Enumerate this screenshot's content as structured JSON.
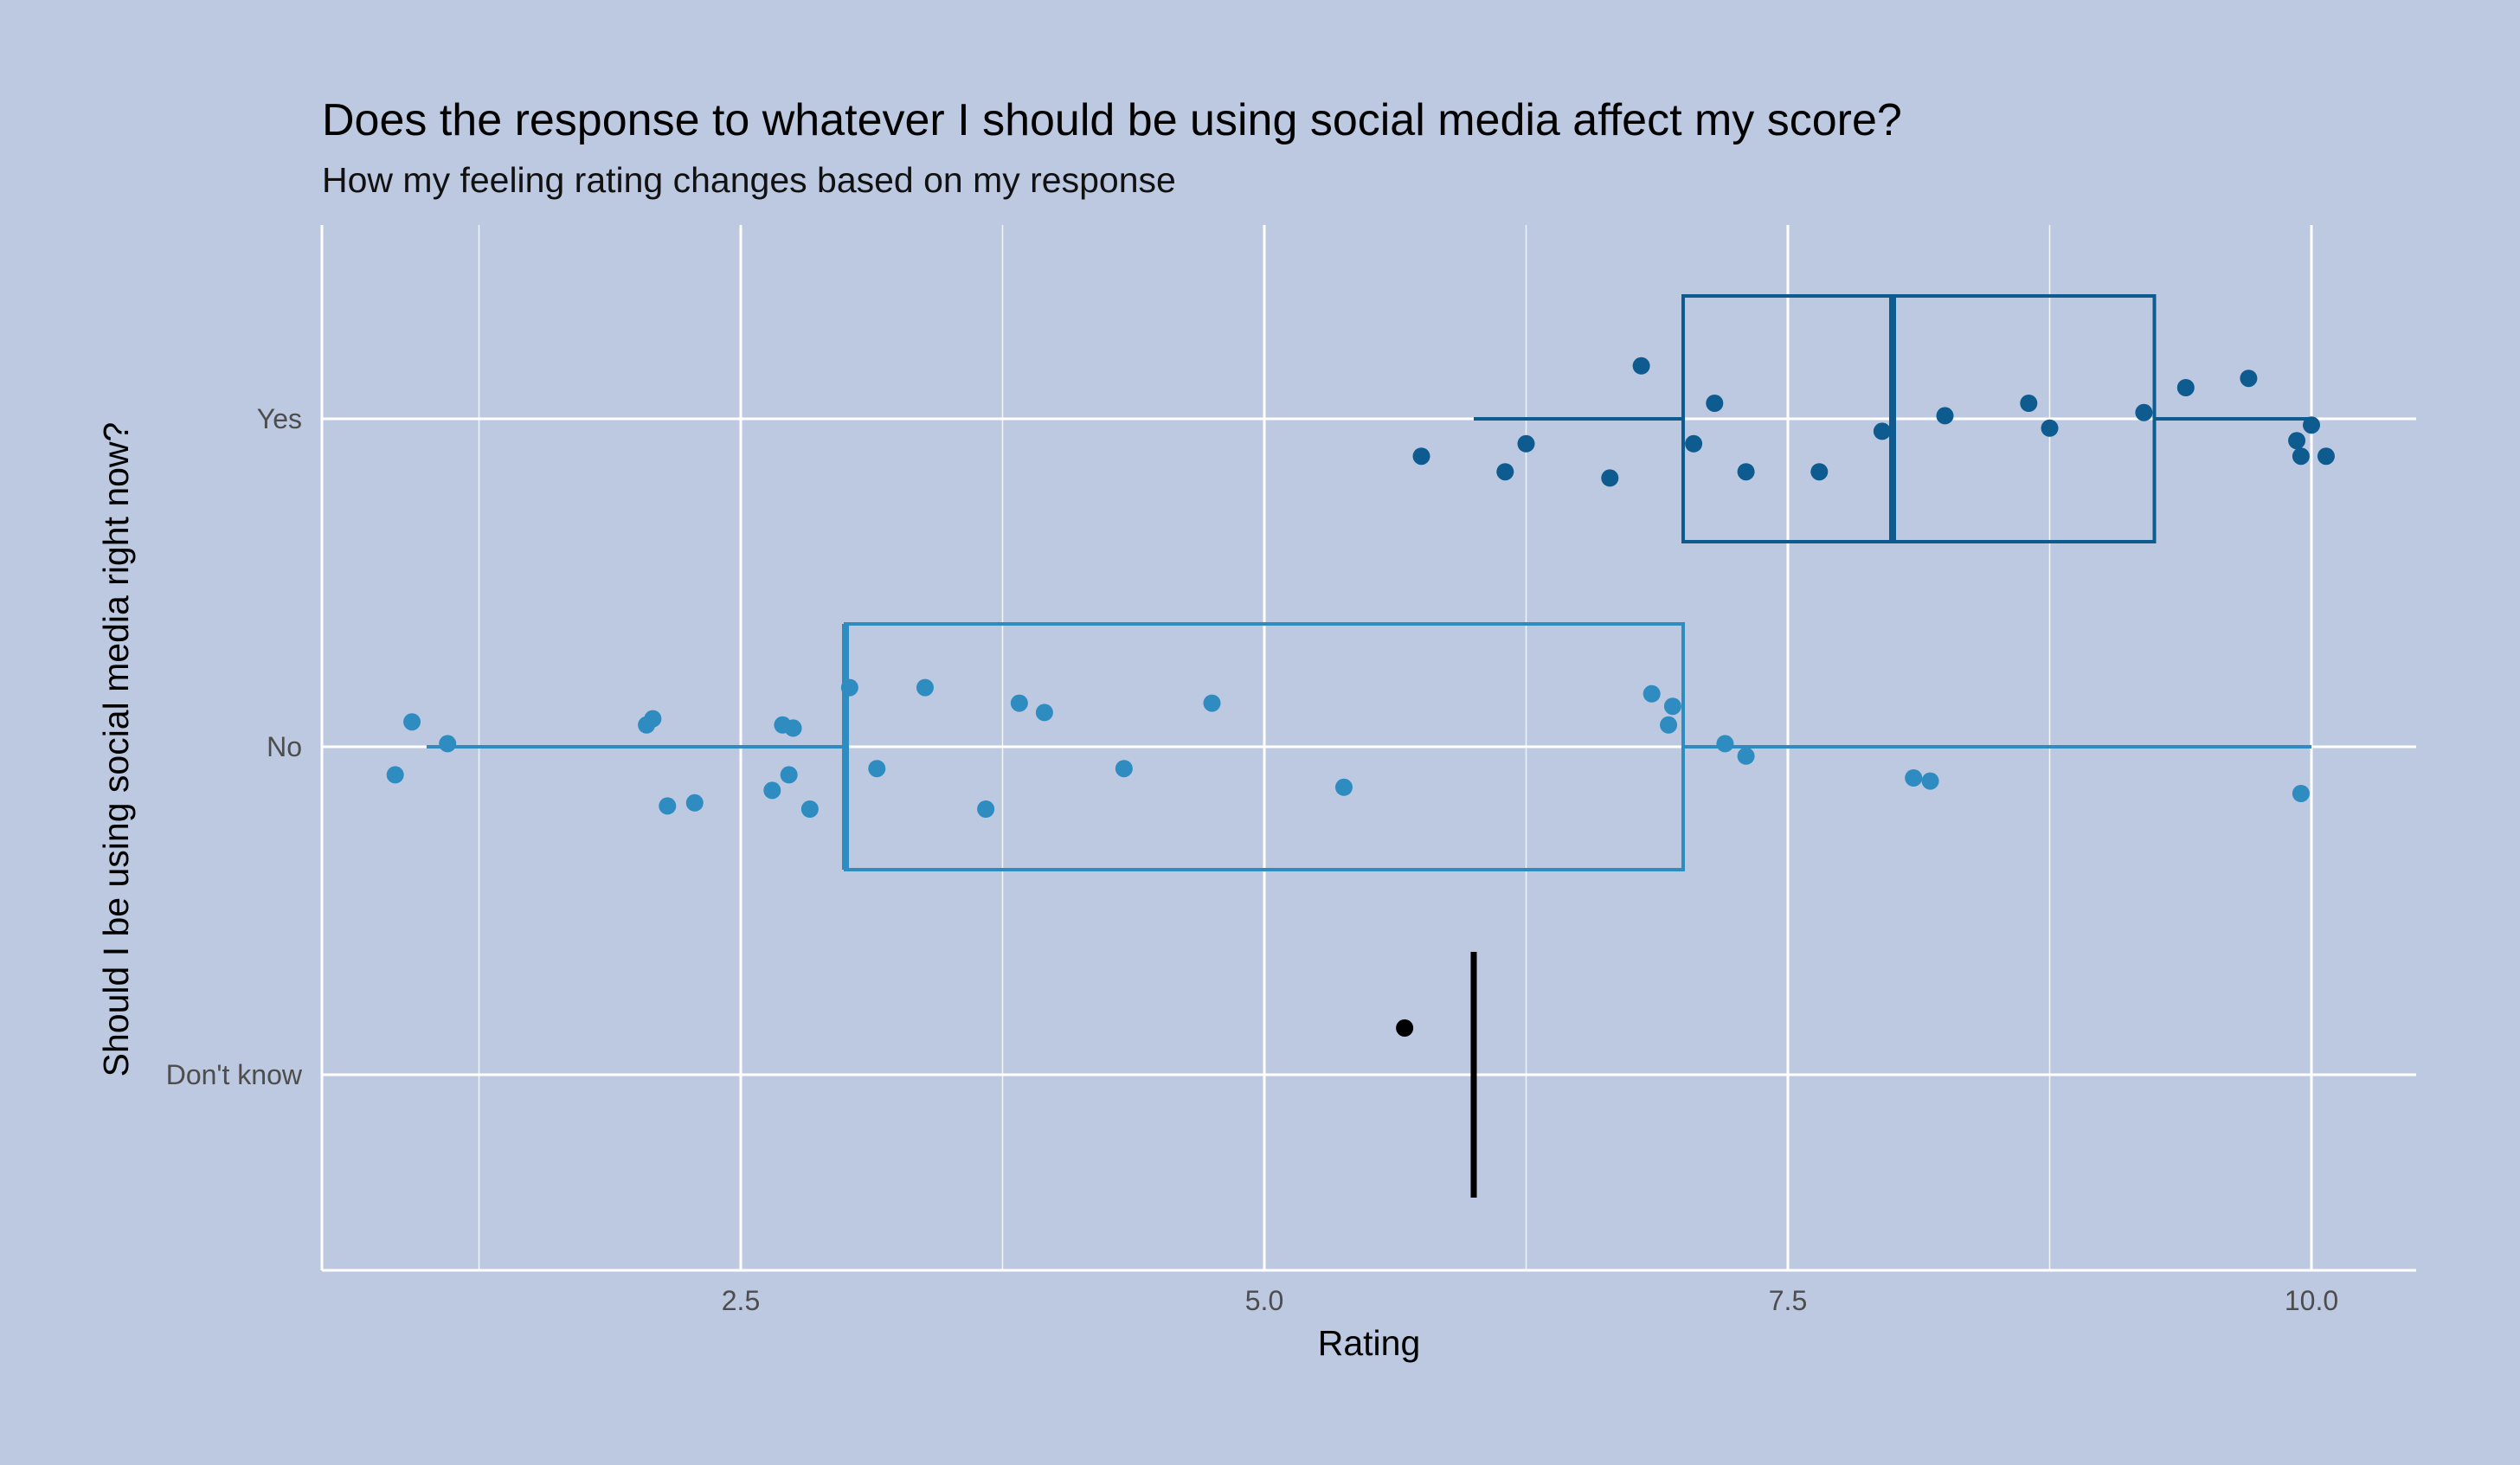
{
  "chart_data": {
    "type": "boxplot",
    "orientation": "horizontal",
    "title": "Does the response to whatever I should be using social media affect my score?",
    "subtitle": "How my feeling rating changes based on my response",
    "xlabel": "Rating",
    "ylabel": "Should I be using social media right now?",
    "xlim": [
      0.5,
      10.5
    ],
    "x_ticks": [
      2.5,
      5.0,
      7.5,
      10.0
    ],
    "x_tick_labels": [
      "2.5",
      "5.0",
      "7.5",
      "10.0"
    ],
    "categories": [
      "Yes",
      "No",
      "Don't know"
    ],
    "grid": true,
    "background": "#bcc9e1",
    "grid_color": "#ffffff",
    "series": [
      {
        "category": "Yes",
        "color": "#0d5b8f",
        "box": {
          "whisker_low": 6.0,
          "q1": 7.0,
          "median": 8.0,
          "q3": 9.25,
          "whisker_high": 10.0
        },
        "points": [
          5.75,
          6.15,
          6.25,
          6.65,
          6.8,
          7.05,
          7.15,
          7.3,
          7.65,
          7.95,
          8.25,
          8.65,
          8.75,
          9.2,
          9.4,
          9.7,
          9.93,
          9.95,
          10.0,
          10.07
        ],
        "jitter": [
          -0.12,
          -0.17,
          -0.08,
          -0.19,
          0.17,
          -0.08,
          0.05,
          -0.17,
          -0.17,
          -0.04,
          0.01,
          0.05,
          -0.03,
          0.02,
          0.1,
          0.13,
          -0.07,
          -0.12,
          -0.02,
          -0.12
        ]
      },
      {
        "category": "No",
        "color": "#2f8cc0",
        "box": {
          "whisker_low": 1.0,
          "q1": 3.0,
          "median": 3.0,
          "q3": 7.0,
          "whisker_high": 10.0
        },
        "points": [
          0.85,
          0.93,
          1.1,
          2.05,
          2.08,
          2.15,
          2.28,
          2.65,
          2.7,
          2.73,
          2.75,
          2.75,
          2.83,
          3.02,
          3.15,
          3.38,
          3.67,
          3.83,
          3.95,
          4.33,
          4.75,
          5.38,
          6.85,
          6.93,
          6.95,
          7.2,
          7.3,
          8.1,
          8.18,
          9.95
        ],
        "jitter": [
          -0.09,
          0.08,
          0.01,
          0.07,
          0.09,
          -0.19,
          -0.18,
          -0.14,
          0.07,
          -0.09,
          0.06,
          0.06,
          -0.2,
          0.19,
          -0.07,
          0.19,
          -0.2,
          0.14,
          0.11,
          -0.07,
          0.14,
          -0.13,
          0.17,
          0.07,
          0.13,
          0.01,
          -0.03,
          -0.1,
          -0.11,
          -0.15
        ]
      },
      {
        "category": "Don't know",
        "color": "#000000",
        "box": {
          "whisker_low": 6.0,
          "q1": 6.0,
          "median": 6.0,
          "q3": 6.0,
          "whisker_high": 6.0
        },
        "points": [
          5.67
        ],
        "jitter": [
          0.15
        ]
      }
    ]
  }
}
